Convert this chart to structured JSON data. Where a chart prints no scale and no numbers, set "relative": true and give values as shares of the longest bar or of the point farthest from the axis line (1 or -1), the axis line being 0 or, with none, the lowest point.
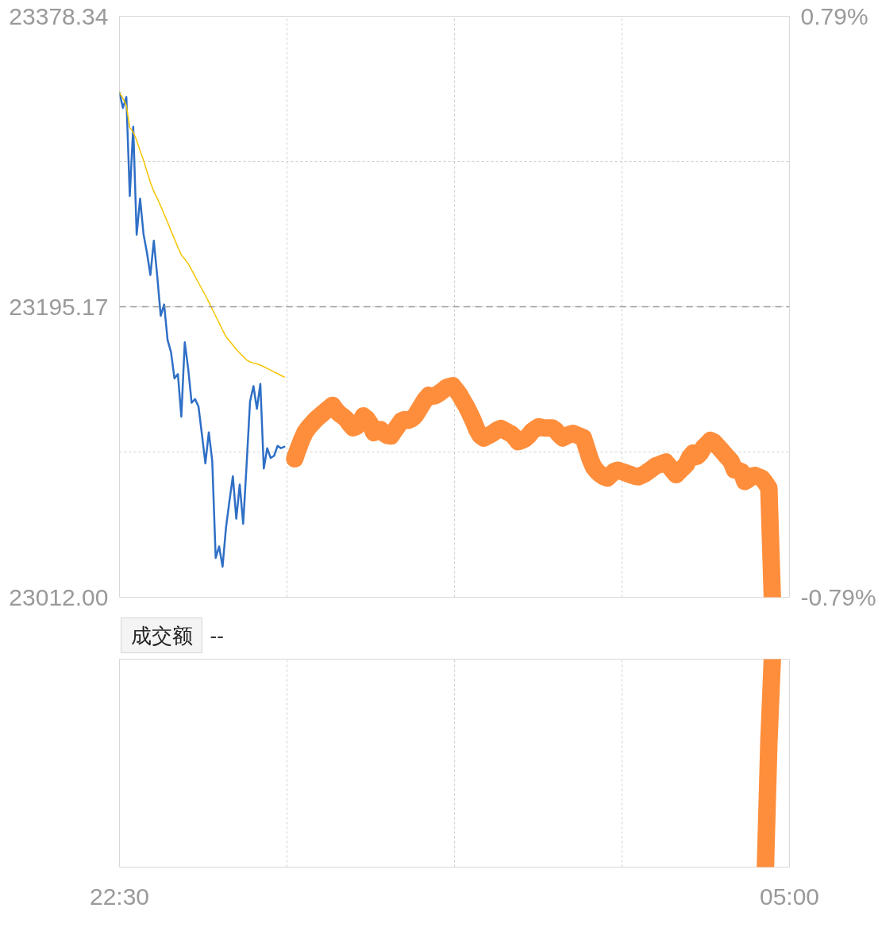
{
  "chart_data": [
    {
      "type": "line",
      "categories": [
        null,
        null,
        null,
        null,
        null,
        null,
        null,
        null,
        null,
        null,
        null,
        null,
        null,
        null,
        null,
        null,
        null,
        null,
        null,
        null,
        null,
        null,
        null,
        null,
        null,
        null,
        null,
        null,
        null,
        null,
        null,
        null,
        null,
        null,
        null,
        null,
        null,
        null,
        null,
        null,
        null,
        null,
        null,
        null,
        null,
        null,
        null,
        null,
        null,
        null,
        null,
        null,
        null,
        null,
        null,
        null,
        null,
        null,
        null,
        null,
        null,
        null,
        null,
        null,
        null,
        null,
        null,
        null,
        null,
        null,
        null,
        null,
        null,
        null,
        null,
        null,
        null,
        null,
        null,
        null,
        null,
        null,
        null,
        null,
        null,
        null,
        null,
        null,
        null,
        null,
        null,
        null,
        null,
        null,
        null,
        null,
        null,
        null,
        null,
        null,
        null,
        null,
        null,
        null,
        null,
        null,
        null,
        null,
        null,
        null,
        null,
        null,
        null,
        null,
        null,
        null,
        null,
        null,
        null,
        null,
        null,
        null,
        null,
        null,
        null,
        null,
        null,
        null,
        null,
        null,
        null,
        null,
        null,
        null,
        null,
        null,
        null,
        null,
        null,
        null,
        null,
        null,
        null,
        null,
        null,
        null,
        null,
        null,
        null,
        null,
        null,
        null,
        null,
        null,
        null,
        null,
        null,
        null,
        null,
        null,
        null,
        null,
        null,
        null,
        null,
        null,
        null,
        null,
        null,
        null,
        null,
        null,
        null,
        null,
        null,
        null,
        null,
        null,
        null,
        null,
        null,
        null,
        null,
        null,
        null,
        null,
        null,
        null,
        null,
        null,
        null,
        null,
        null,
        null,
        null,
        null
      ],
      "ylim": [
        23012.0,
        23378.34
      ],
      "yticks": [
        {
          "value": 23012.0,
          "label": "23012.00"
        },
        {
          "value": 23103.585,
          "label": null
        },
        {
          "value": 23195.17,
          "label": "23195.17"
        },
        {
          "value": 23286.755,
          "label": null
        },
        {
          "value": 23378.34,
          "label": "23378.34"
        }
      ],
      "y2lim": [
        -0.79,
        0.79
      ],
      "y2ticks": [
        {
          "value": -0.79,
          "label": "-0.79%"
        },
        {
          "value": 0.79,
          "label": "0.79%"
        }
      ],
      "tick_labels": "y",
      "grid": true,
      "ref_lines": [
        {
          "axis": "y",
          "value": 23195.17,
          "color": "#999999",
          "line_style": "dashed"
        }
      ],
      "series": [
        {
          "color": "#2f6fc6",
          "values": [
            23330.2,
            23320.6,
            23327.4,
            23265.0,
            23308.7,
            23240.6,
            23263.4,
            23241.0,
            23229.2,
            23215.2,
            23236.8,
            23214.3,
            23189.5,
            23196.6,
            23174.2,
            23166.6,
            23150.0,
            23152.7,
            23125.9,
            23172.8,
            23156.1,
            23134.6,
            23137.0,
            23132.2,
            23114.6,
            23096.4,
            23116.0,
            23097.9,
            23036.8,
            23044.0,
            23031.2,
            23055.9,
            23072.6,
            23088.3,
            23061.5,
            23083.1,
            23058.3,
            23095.5,
            23135.5,
            23145.1,
            23130.8,
            23146.5,
            23093.2,
            23106.0,
            23099.8,
            23101.2,
            23107.4,
            23106.0,
            23106.9,
            null,
            null,
            null,
            null,
            null,
            null,
            null,
            null,
            null,
            null,
            null,
            null,
            null,
            null,
            null,
            null,
            null,
            null,
            null,
            null,
            null,
            null,
            null,
            null,
            null,
            null,
            null,
            null,
            null,
            null,
            null,
            null,
            null,
            null,
            null,
            null,
            null,
            null,
            null,
            null,
            null,
            null,
            null,
            null,
            null,
            null,
            null,
            null,
            null,
            null,
            null,
            null,
            null,
            null,
            null,
            null,
            null,
            null,
            null,
            null,
            null,
            null,
            null,
            null,
            null,
            null,
            null,
            null,
            null,
            null,
            null,
            null,
            null,
            null,
            null,
            null,
            null,
            null,
            null,
            null,
            null,
            null,
            null,
            null,
            null,
            null,
            null,
            null,
            null,
            null,
            null,
            null,
            null,
            null,
            null,
            null,
            null,
            null,
            null,
            null,
            null,
            null,
            null,
            null,
            null,
            null,
            null,
            null,
            null,
            null,
            null,
            null,
            null,
            null,
            null,
            null,
            null,
            null,
            null,
            null,
            null,
            null,
            null,
            null,
            null,
            null,
            null,
            null,
            null,
            null,
            null,
            null,
            null,
            null,
            null,
            null,
            null,
            null,
            null,
            null,
            null,
            null,
            null,
            null,
            null,
            null,
            null
          ]
        },
        {
          "color": "#f5c400",
          "values": [
            23330.2,
            23326.6,
            23322.0,
            23308.2,
            23305.3,
            23300.1,
            23293.5,
            23287.5,
            23280.5,
            23273.5,
            23267.9,
            23263.6,
            23258.6,
            23253.6,
            23248.4,
            23243.1,
            23237.9,
            23232.7,
            23227.9,
            23225.2,
            23222.4,
            23218.4,
            23214.4,
            23210.3,
            23206.3,
            23202.3,
            23198.1,
            23193.7,
            23189.3,
            23185.0,
            23180.5,
            23176.3,
            23173.7,
            23171.0,
            23168.3,
            23166.0,
            23163.8,
            23161.6,
            23160.4,
            23159.7,
            23159.1,
            23158.4,
            23157.4,
            23156.3,
            23155.2,
            23154.1,
            23153.0,
            23151.9,
            23150.8,
            null,
            null,
            null,
            null,
            null,
            null,
            null,
            null,
            null,
            null,
            null,
            null,
            null,
            null,
            null,
            null,
            null,
            null,
            null,
            null,
            null,
            null,
            null,
            null,
            null,
            null,
            null,
            null,
            null,
            null,
            null,
            null,
            null,
            null,
            null,
            null,
            null,
            null,
            null,
            null,
            null,
            null,
            null,
            null,
            null,
            null,
            null,
            null,
            null,
            null,
            null,
            null,
            null,
            null,
            null,
            null,
            null,
            null,
            null,
            null,
            null,
            null,
            null,
            null,
            null,
            null,
            null,
            null,
            null,
            null,
            null,
            null,
            null,
            null,
            null,
            null,
            null,
            null,
            null,
            null,
            null,
            null,
            null,
            null,
            null,
            null,
            null,
            null,
            null,
            null,
            null,
            null,
            null,
            null,
            null,
            null,
            null,
            null,
            null,
            null,
            null,
            null,
            null,
            null,
            null,
            null,
            null,
            null,
            null,
            null,
            null,
            null,
            null,
            null,
            null,
            null,
            null,
            null,
            null,
            null,
            null,
            null,
            null,
            null,
            null,
            null,
            null,
            null,
            null,
            null,
            null,
            null,
            null,
            null,
            null,
            null,
            null,
            null,
            null,
            null,
            null,
            null,
            null,
            null,
            null,
            null,
            null
          ]
        },
        {
          "color": "#ff8e3c",
          "values": [
            null,
            null,
            null,
            null,
            null,
            null,
            null,
            null,
            null,
            null,
            null,
            null,
            null,
            null,
            null,
            null,
            null,
            null,
            null,
            null,
            null,
            null,
            null,
            null,
            null,
            null,
            null,
            null,
            null,
            null,
            null,
            null,
            null,
            null,
            null,
            null,
            null,
            null,
            null,
            null,
            null,
            null,
            null,
            null,
            null,
            null,
            null,
            null,
            null,
            null,
            null,
            23099.3,
            23105.5,
            23111.2,
            23116.0,
            23119.0,
            23121.4,
            23123.8,
            23125.8,
            23127.6,
            23129.5,
            23131.3,
            23133.0,
            23130.1,
            23127.7,
            23126.1,
            23124.3,
            23121.3,
            23118.9,
            23119.7,
            23122.3,
            23126.3,
            23124.5,
            23121.3,
            23115.8,
            23116.8,
            23117.6,
            23115.4,
            23114.0,
            23113.7,
            23116.9,
            23120.0,
            23123.1,
            23124.0,
            23123.6,
            23124.5,
            23126.3,
            23129.7,
            23133.3,
            23136.8,
            23139.3,
            23138.8,
            23139.2,
            23140.6,
            23142.2,
            23144.0,
            23144.9,
            23145.3,
            23142.6,
            23139.6,
            23135.8,
            23132.2,
            23127.7,
            23123.1,
            23117.7,
            23114.0,
            23112.4,
            23113.5,
            23114.6,
            23116.0,
            23117.6,
            23118.4,
            23117.3,
            23116.1,
            23115.0,
            23112.9,
            23110.2,
            23110.8,
            23111.8,
            23113.7,
            23116.5,
            23118.1,
            23119.5,
            23118.9,
            23118.7,
            23118.7,
            23118.7,
            23117.2,
            23114.5,
            23112.5,
            23113.6,
            23114.7,
            23115.3,
            23114.4,
            23113.5,
            23112.6,
            23105.9,
            23099.0,
            23094.0,
            23091.4,
            23089.4,
            23088.0,
            23087.2,
            23089.3,
            23091.4,
            23092.1,
            23091.4,
            23090.7,
            23089.9,
            23089.1,
            23088.3,
            23088.0,
            23089.0,
            23090.0,
            23091.6,
            23093.1,
            23094.8,
            23095.6,
            23096.4,
            23097.2,
            23094.6,
            23091.9,
            23089.3,
            23091.5,
            23093.6,
            23095.9,
            23100.4,
            23103.0,
            23100.7,
            23102.8,
            23106.5,
            23108.6,
            23110.9,
            23109.9,
            23107.5,
            23105.1,
            23102.6,
            23100.2,
            23097.8,
            23092.4,
            23092.0,
            23091.2,
            23085.0,
            23086.3,
            23088.3,
            23088.8,
            23087.9,
            23087.0,
            23084.2,
            23080.9,
            23012.0,
            null,
            null,
            null,
            null,
            null
          ]
        }
      ]
    },
    {
      "type": "line",
      "title": "成交额",
      "subtitle": "--",
      "relative": true,
      "categories": [
        "22:30",
        null,
        null,
        null,
        null,
        null,
        null,
        null,
        null,
        null,
        null,
        null,
        null,
        null,
        null,
        null,
        null,
        null,
        null,
        null,
        null,
        null,
        null,
        null,
        null,
        null,
        null,
        null,
        null,
        null,
        null,
        null,
        null,
        null,
        null,
        null,
        null,
        null,
        null,
        null,
        null,
        null,
        null,
        null,
        null,
        null,
        null,
        null,
        null,
        null,
        null,
        null,
        null,
        null,
        null,
        null,
        null,
        null,
        null,
        null,
        null,
        null,
        null,
        null,
        null,
        null,
        null,
        null,
        null,
        null,
        null,
        null,
        null,
        null,
        null,
        null,
        null,
        null,
        null,
        null,
        null,
        null,
        null,
        null,
        null,
        null,
        null,
        null,
        null,
        null,
        null,
        null,
        null,
        null,
        null,
        null,
        null,
        null,
        null,
        null,
        null,
        null,
        null,
        null,
        null,
        null,
        null,
        null,
        null,
        null,
        null,
        null,
        null,
        null,
        null,
        null,
        null,
        null,
        null,
        null,
        null,
        null,
        null,
        null,
        null,
        null,
        null,
        null,
        null,
        null,
        null,
        null,
        null,
        null,
        null,
        null,
        null,
        null,
        null,
        null,
        null,
        null,
        null,
        null,
        null,
        null,
        null,
        null,
        null,
        null,
        null,
        null,
        null,
        null,
        null,
        null,
        null,
        null,
        null,
        null,
        null,
        null,
        null,
        null,
        null,
        null,
        null,
        null,
        null,
        null,
        null,
        null,
        null,
        null,
        null,
        null,
        null,
        null,
        null,
        null,
        null,
        null,
        null,
        null,
        null,
        null,
        null,
        null,
        null,
        null,
        null,
        null,
        null,
        null,
        null,
        "05:00"
      ],
      "tick_labels": "x",
      "grid": "x",
      "series": [
        {
          "color": "#ff8e3c",
          "values": [
            null,
            null,
            null,
            null,
            null,
            null,
            null,
            null,
            null,
            null,
            null,
            null,
            null,
            null,
            null,
            null,
            null,
            null,
            null,
            null,
            null,
            null,
            null,
            null,
            null,
            null,
            null,
            null,
            null,
            null,
            null,
            null,
            null,
            null,
            null,
            null,
            null,
            null,
            null,
            null,
            null,
            null,
            null,
            null,
            null,
            null,
            null,
            null,
            null,
            null,
            null,
            null,
            null,
            null,
            null,
            null,
            null,
            null,
            null,
            null,
            null,
            null,
            null,
            null,
            null,
            null,
            null,
            null,
            null,
            null,
            null,
            null,
            null,
            null,
            null,
            null,
            null,
            null,
            null,
            null,
            null,
            null,
            null,
            null,
            null,
            null,
            null,
            null,
            null,
            null,
            null,
            null,
            null,
            null,
            null,
            null,
            null,
            null,
            null,
            null,
            null,
            null,
            null,
            null,
            null,
            null,
            null,
            null,
            null,
            null,
            null,
            null,
            null,
            null,
            null,
            null,
            null,
            null,
            null,
            null,
            null,
            null,
            null,
            null,
            null,
            null,
            null,
            null,
            null,
            null,
            null,
            null,
            null,
            null,
            null,
            null,
            null,
            null,
            null,
            null,
            null,
            null,
            null,
            null,
            null,
            null,
            null,
            null,
            null,
            null,
            null,
            null,
            null,
            null,
            null,
            null,
            null,
            null,
            null,
            null,
            null,
            null,
            null,
            null,
            null,
            null,
            null,
            null,
            null,
            null,
            null,
            null,
            null,
            null,
            null,
            null,
            null,
            null,
            null,
            null,
            null,
            null,
            null,
            null,
            null,
            null,
            null,
            null,
            0,
            0.6,
            1,
            null,
            null,
            null,
            null,
            null
          ]
        }
      ]
    }
  ]
}
